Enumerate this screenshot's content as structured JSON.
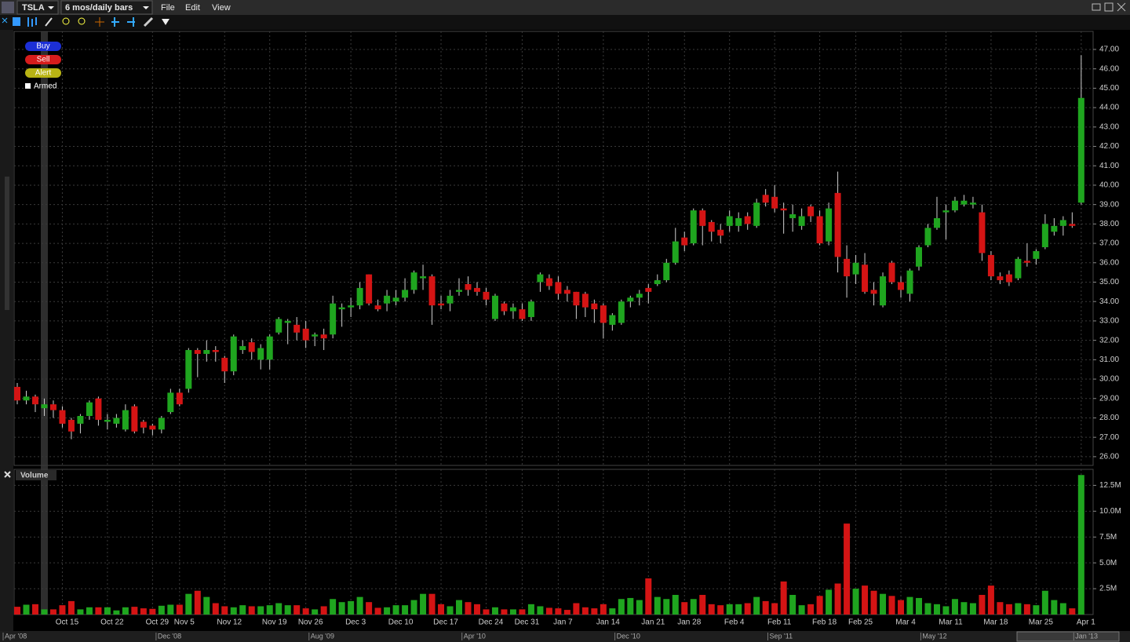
{
  "toolbar": {
    "symbol": "TSLA",
    "period": "6 mos/daily bars",
    "menus": [
      "File",
      "Edit",
      "View"
    ]
  },
  "order_panel": {
    "buttons": [
      "Buy",
      "Sell",
      "Alert"
    ],
    "armed": "Armed"
  },
  "navigator": {
    "labels": [
      "Apr '08",
      "Dec '08",
      "Aug '09",
      "Apr '10",
      "Dec '10",
      "Sep '11",
      "May '12",
      "Jan '13"
    ]
  },
  "chart_data": [
    {
      "type": "candlestick",
      "up_color": "#1fa51f",
      "down_color": "#d41414",
      "grid": true,
      "ylim": [
        25.55,
        47.93
      ],
      "yticks": [
        {
          "value": 26,
          "label": "26.00"
        },
        {
          "value": 27,
          "label": "27.00"
        },
        {
          "value": 28,
          "label": "28.00"
        },
        {
          "value": 29,
          "label": "29.00"
        },
        {
          "value": 30,
          "label": "30.00"
        },
        {
          "value": 31,
          "label": "31.00"
        },
        {
          "value": 32,
          "label": "32.00"
        },
        {
          "value": 33,
          "label": "33.00"
        },
        {
          "value": 34,
          "label": "34.00"
        },
        {
          "value": 35,
          "label": "35.00"
        },
        {
          "value": 36,
          "label": "36.00"
        },
        {
          "value": 37,
          "label": "37.00"
        },
        {
          "value": 38,
          "label": "38.00"
        },
        {
          "value": 39,
          "label": "39.00"
        },
        {
          "value": 40,
          "label": "40.00"
        },
        {
          "value": 41,
          "label": "41.00"
        },
        {
          "value": 42,
          "label": "42.00"
        },
        {
          "value": 43,
          "label": "43.00"
        },
        {
          "value": 44,
          "label": "44.00"
        },
        {
          "value": 45,
          "label": "45.00"
        },
        {
          "value": 46,
          "label": "46.00"
        },
        {
          "value": 47,
          "label": "47.00"
        }
      ],
      "series": [
        {
          "open": [
            29.6,
            28.9,
            29.1,
            28.5,
            28.7,
            28.4,
            27.9,
            27.7,
            28.1,
            29.0,
            27.8,
            27.7,
            27.4,
            28.6,
            27.8,
            27.6,
            27.4,
            28.3,
            29.3,
            29.5,
            31.5,
            31.3,
            31.5,
            31.1,
            30.4,
            31.5,
            31.9,
            31.0,
            31.0,
            32.4,
            32.9,
            32.8,
            32.6,
            32.2,
            32.3,
            32.3,
            33.6,
            33.7,
            33.8,
            35.4,
            33.8,
            33.9,
            34.0,
            34.2,
            34.6,
            35.2,
            35.3,
            33.9,
            33.9,
            34.5,
            34.9,
            34.7,
            34.5,
            33.1,
            33.9,
            33.5,
            33.6,
            33.2,
            35.0,
            35.2,
            35.0,
            34.6,
            34.5,
            34.4,
            33.9,
            33.8,
            32.8,
            32.9,
            34.0,
            34.2,
            34.7,
            34.9,
            35.1,
            36.0,
            37.3,
            37.0,
            38.7,
            38.1,
            37.7,
            37.9,
            37.9,
            38.4,
            37.9,
            39.5,
            39.4,
            38.8,
            38.3,
            37.9,
            38.9,
            38.4,
            37.1,
            39.6,
            36.2,
            35.4,
            35.9,
            34.6,
            33.8,
            36.0,
            35.0,
            34.4,
            35.8,
            36.9,
            37.8,
            38.6,
            38.7,
            39.0,
            39.0,
            38.6,
            36.4,
            35.3,
            35.4,
            35.2,
            36.1,
            36.2,
            36.8,
            37.6,
            37.9,
            38.0,
            39.1
          ],
          "high": [
            29.8,
            29.4,
            29.2,
            29.0,
            28.9,
            28.6,
            28.0,
            28.2,
            28.9,
            29.1,
            28.2,
            28.2,
            28.7,
            28.7,
            27.9,
            27.7,
            28.1,
            29.5,
            29.5,
            31.6,
            31.6,
            32.0,
            31.7,
            31.2,
            32.3,
            32.0,
            32.1,
            31.8,
            32.3,
            33.2,
            33.1,
            33.2,
            33.0,
            32.4,
            32.6,
            34.3,
            33.9,
            34.2,
            35.0,
            35.4,
            34.1,
            34.6,
            34.6,
            35.2,
            35.6,
            35.9,
            35.4,
            34.3,
            34.6,
            35.2,
            35.3,
            35.0,
            34.7,
            34.4,
            34.0,
            33.9,
            33.9,
            34.1,
            35.5,
            35.4,
            35.3,
            34.8,
            34.5,
            34.5,
            34.1,
            33.9,
            33.4,
            34.1,
            34.3,
            34.6,
            34.9,
            35.4,
            36.2,
            37.8,
            37.6,
            38.8,
            38.8,
            38.2,
            38.0,
            38.7,
            38.6,
            38.6,
            39.3,
            39.8,
            40.0,
            39.1,
            39.0,
            38.8,
            39.0,
            38.7,
            39.1,
            40.7,
            36.9,
            36.4,
            36.5,
            35.0,
            35.5,
            36.1,
            35.3,
            35.7,
            36.9,
            38.0,
            39.4,
            39.0,
            39.4,
            39.5,
            39.4,
            39.0,
            36.6,
            35.5,
            35.6,
            36.3,
            37.0,
            36.7,
            38.5,
            38.3,
            38.4,
            38.6,
            46.7
          ],
          "low": [
            28.7,
            28.7,
            28.3,
            28.1,
            28.0,
            27.5,
            26.9,
            27.2,
            27.9,
            27.6,
            27.4,
            27.5,
            27.3,
            27.2,
            27.2,
            27.1,
            27.2,
            28.2,
            28.6,
            29.3,
            30.1,
            30.9,
            30.9,
            29.8,
            30.2,
            31.3,
            31.0,
            30.5,
            30.5,
            32.3,
            31.8,
            32.0,
            31.6,
            31.7,
            31.5,
            32.1,
            32.7,
            33.2,
            33.6,
            33.8,
            33.5,
            33.5,
            33.8,
            34.0,
            34.4,
            34.6,
            32.8,
            33.6,
            33.5,
            34.3,
            34.3,
            34.3,
            33.8,
            33.0,
            33.3,
            33.1,
            33.0,
            33.0,
            34.5,
            34.6,
            34.1,
            34.0,
            33.1,
            33.2,
            32.9,
            32.1,
            32.5,
            32.8,
            33.7,
            33.8,
            33.9,
            34.8,
            35.0,
            35.9,
            36.6,
            36.9,
            36.9,
            37.1,
            37.0,
            37.6,
            37.6,
            37.7,
            37.8,
            38.9,
            38.6,
            37.5,
            37.6,
            37.7,
            38.1,
            36.9,
            36.9,
            35.5,
            34.2,
            34.9,
            34.4,
            33.8,
            33.7,
            34.9,
            34.2,
            34.0,
            35.6,
            36.8,
            37.7,
            37.2,
            38.6,
            38.9,
            38.8,
            36.1,
            35.1,
            34.9,
            34.8,
            35.1,
            35.8,
            35.9,
            36.7,
            37.4,
            37.4,
            37.8,
            39.0
          ],
          "close": [
            28.9,
            29.1,
            28.7,
            28.7,
            28.4,
            27.7,
            27.3,
            28.1,
            28.8,
            27.9,
            27.9,
            28.0,
            28.4,
            27.3,
            27.5,
            27.4,
            28.0,
            29.3,
            28.7,
            31.5,
            31.3,
            31.5,
            31.4,
            30.4,
            32.2,
            31.7,
            31.4,
            31.6,
            32.2,
            33.1,
            33.0,
            32.4,
            32.0,
            32.3,
            32.1,
            33.9,
            33.7,
            33.8,
            34.7,
            33.9,
            33.6,
            34.3,
            34.2,
            34.6,
            35.5,
            35.3,
            33.8,
            33.8,
            34.3,
            34.6,
            34.6,
            34.5,
            34.1,
            34.3,
            33.5,
            33.7,
            33.1,
            34.0,
            35.4,
            34.8,
            34.4,
            34.4,
            33.8,
            33.7,
            33.6,
            32.9,
            33.3,
            34.0,
            34.2,
            34.4,
            34.5,
            35.1,
            36.0,
            37.1,
            36.9,
            38.7,
            37.9,
            37.6,
            37.4,
            38.4,
            38.3,
            38.0,
            39.1,
            39.1,
            38.8,
            38.7,
            38.5,
            38.4,
            38.4,
            37.0,
            38.8,
            36.3,
            35.3,
            36.0,
            34.5,
            34.4,
            35.3,
            35.0,
            34.6,
            35.6,
            36.8,
            37.8,
            38.3,
            38.7,
            39.2,
            39.2,
            39.1,
            36.5,
            35.3,
            35.1,
            35.0,
            36.2,
            36.0,
            36.6,
            38.0,
            37.9,
            38.2,
            37.9,
            44.5
          ]
        }
      ]
    },
    {
      "type": "bar",
      "title": "Volume",
      "grid": true,
      "ylim": [
        0,
        14.05
      ],
      "yticks": [
        {
          "value": 2.5,
          "label": "2.5M"
        },
        {
          "value": 5,
          "label": "5.0M"
        },
        {
          "value": 7.5,
          "label": "7.5M"
        },
        {
          "value": 10,
          "label": "10.0M"
        },
        {
          "value": 12.5,
          "label": "12.5M"
        }
      ],
      "categories": [
        null,
        null,
        null,
        null,
        null,
        "Oct 15",
        null,
        null,
        null,
        null,
        "Oct 22",
        null,
        null,
        null,
        null,
        "Oct 29",
        null,
        null,
        "Nov 5",
        null,
        null,
        null,
        null,
        "Nov 12",
        null,
        null,
        null,
        null,
        "Nov 19",
        null,
        null,
        null,
        "Nov 26",
        null,
        null,
        null,
        null,
        "Dec 3",
        null,
        null,
        null,
        null,
        "Dec 10",
        null,
        null,
        null,
        null,
        "Dec 17",
        null,
        null,
        null,
        null,
        "Dec 24",
        null,
        null,
        null,
        "Dec 31",
        null,
        null,
        null,
        "Jan 7",
        null,
        null,
        null,
        null,
        "Jan 14",
        null,
        null,
        null,
        null,
        "Jan 21",
        null,
        null,
        null,
        "Jan 28",
        null,
        null,
        null,
        null,
        "Feb 4",
        null,
        null,
        null,
        null,
        "Feb 11",
        null,
        null,
        null,
        null,
        "Feb 18",
        null,
        null,
        null,
        "Feb 25",
        null,
        null,
        null,
        null,
        "Mar 4",
        null,
        null,
        null,
        null,
        "Mar 11",
        null,
        null,
        null,
        null,
        "Mar 18",
        null,
        null,
        null,
        null,
        "Mar 25",
        null,
        null,
        null,
        null,
        "Apr 1"
      ],
      "values": [
        0.75,
        0.95,
        1.0,
        0.5,
        0.5,
        0.9,
        1.3,
        0.5,
        0.7,
        0.7,
        0.7,
        0.4,
        0.7,
        0.75,
        0.6,
        0.55,
        0.85,
        0.95,
        0.95,
        2.0,
        2.3,
        1.7,
        1.1,
        0.8,
        0.7,
        0.9,
        0.8,
        0.8,
        0.9,
        1.1,
        0.9,
        0.9,
        0.6,
        0.5,
        0.8,
        1.5,
        1.2,
        1.3,
        1.7,
        1.2,
        0.65,
        0.7,
        0.9,
        0.9,
        1.4,
        2.0,
        2.0,
        1.0,
        0.8,
        1.4,
        1.2,
        1.0,
        0.5,
        0.7,
        0.5,
        0.5,
        0.5,
        1.0,
        0.8,
        0.65,
        0.6,
        0.45,
        1.1,
        0.7,
        0.6,
        1.0,
        0.6,
        1.5,
        1.6,
        1.4,
        3.5,
        1.7,
        1.5,
        1.9,
        1.2,
        1.5,
        1.9,
        1.0,
        0.9,
        1.0,
        1.0,
        1.1,
        1.7,
        1.3,
        1.1,
        3.2,
        1.9,
        0.9,
        1.0,
        1.8,
        2.4,
        3.0,
        8.8,
        2.5,
        2.8,
        2.3,
        2.0,
        1.8,
        1.4,
        1.7,
        1.6,
        1.1,
        1.0,
        0.8,
        1.5,
        1.2,
        1.1,
        1.9,
        2.8,
        1.2,
        1.0,
        1.1,
        1.0,
        0.9,
        2.3,
        1.4,
        1.1,
        0.6,
        13.5
      ]
    }
  ]
}
